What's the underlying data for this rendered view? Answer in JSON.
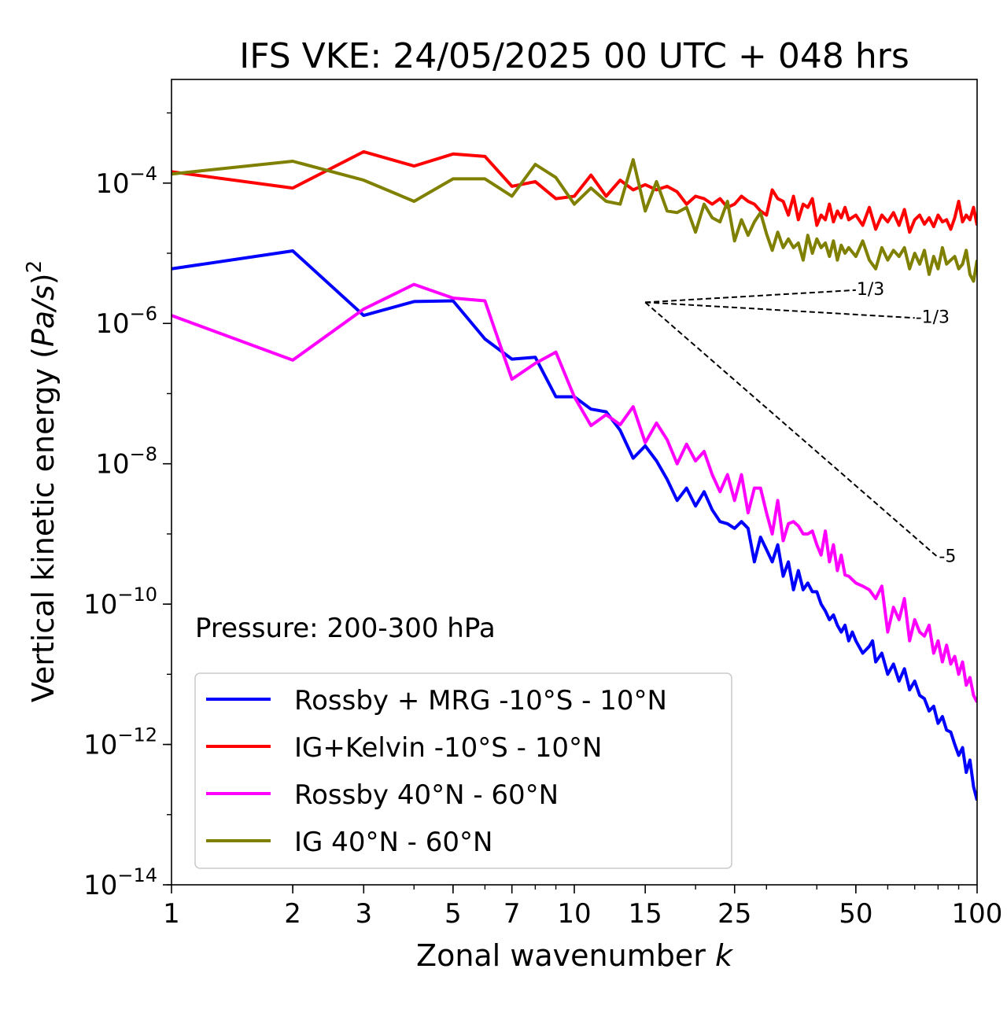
{
  "chart_data": {
    "type": "line",
    "title": "IFS VKE: 24/05/2025 00 UTC + 048 hrs",
    "xlabel": "Zonal wavenumber k",
    "ylabel": "Vertical kinetic energy (Pa/s)²",
    "xscale": "log",
    "yscale": "log",
    "xlim": [
      1,
      100
    ],
    "ylim": [
      1e-14,
      0.003
    ],
    "x_ticks": [
      1,
      2,
      3,
      5,
      7,
      10,
      15,
      25,
      50,
      100
    ],
    "y_tick_exponents": [
      -4,
      -6,
      -8,
      -10,
      -12,
      -14
    ],
    "grid": false,
    "legend_position": "bottom-left",
    "annotation": "Pressure: 200-300 hPa",
    "series": [
      {
        "name": "Rossby + MRG -10°S - 10°N",
        "color": "#0000ff",
        "points": [
          [
            1,
            6e-06
          ],
          [
            2,
            1.08e-05
          ],
          [
            3,
            1.3e-06
          ],
          [
            4,
            2.05e-06
          ],
          [
            5,
            2.1e-06
          ],
          [
            6,
            6e-07
          ],
          [
            7,
            3.1e-07
          ],
          [
            8,
            3.3e-07
          ],
          [
            9,
            9e-08
          ],
          [
            10,
            9e-08
          ],
          [
            11,
            6e-08
          ],
          [
            12,
            5.5e-08
          ],
          [
            13,
            3e-08
          ],
          [
            14,
            1.2e-08
          ],
          [
            15,
            1.8e-08
          ],
          [
            16,
            1.1e-08
          ],
          [
            17,
            6e-09
          ],
          [
            18,
            3e-09
          ],
          [
            19,
            4.5e-09
          ],
          [
            20,
            2.5e-09
          ],
          [
            21,
            4e-09
          ],
          [
            22,
            2.2e-09
          ],
          [
            23,
            1.5e-09
          ],
          [
            24,
            1.4e-09
          ],
          [
            25,
            1.2e-09
          ],
          [
            26,
            1.5e-09
          ],
          [
            27,
            1.2e-09
          ],
          [
            28,
            4e-10
          ],
          [
            29,
            9e-10
          ],
          [
            30,
            6e-10
          ],
          [
            31,
            4e-10
          ],
          [
            32,
            7e-10
          ],
          [
            33,
            2.5e-10
          ],
          [
            34,
            4e-10
          ],
          [
            35,
            1.6e-10
          ],
          [
            36,
            3e-10
          ],
          [
            37,
            1.6e-10
          ],
          [
            38,
            2e-10
          ],
          [
            39,
            1.5e-10
          ],
          [
            40,
            1.5e-10
          ],
          [
            41,
            1e-10
          ],
          [
            42,
            8e-11
          ],
          [
            43,
            6e-11
          ],
          [
            44,
            7e-11
          ],
          [
            45,
            5e-11
          ],
          [
            46,
            4e-11
          ],
          [
            47,
            5e-11
          ],
          [
            48,
            3e-11
          ],
          [
            49,
            4e-11
          ],
          [
            50,
            3e-11
          ],
          [
            52,
            2e-11
          ],
          [
            54,
            2.5e-11
          ],
          [
            55,
            3e-11
          ],
          [
            56,
            1.5e-11
          ],
          [
            58,
            2e-11
          ],
          [
            60,
            1e-11
          ],
          [
            62,
            1.4e-11
          ],
          [
            64,
            8e-12
          ],
          [
            66,
            1.2e-11
          ],
          [
            68,
            6e-12
          ],
          [
            70,
            8e-12
          ],
          [
            72,
            5e-12
          ],
          [
            74,
            4.5e-12
          ],
          [
            76,
            3e-12
          ],
          [
            78,
            3.5e-12
          ],
          [
            80,
            2e-12
          ],
          [
            82,
            2.5e-12
          ],
          [
            84,
            1.6e-12
          ],
          [
            86,
            1.5e-12
          ],
          [
            88,
            1e-12
          ],
          [
            90,
            7e-13
          ],
          [
            92,
            9e-13
          ],
          [
            94,
            4e-13
          ],
          [
            96,
            6e-13
          ],
          [
            98,
            2.5e-13
          ],
          [
            100,
            1.6e-13
          ]
        ]
      },
      {
        "name": "IG+Kelvin -10°S - 10°N",
        "color": "#ff0000",
        "points": [
          [
            1,
            0.000145
          ],
          [
            2,
            8.5e-05
          ],
          [
            3,
            0.00028
          ],
          [
            4,
            0.000175
          ],
          [
            5,
            0.00026
          ],
          [
            6,
            0.00024
          ],
          [
            7,
            9e-05
          ],
          [
            8,
            0.000105
          ],
          [
            9,
            6e-05
          ],
          [
            10,
            6.5e-05
          ],
          [
            11,
            0.00013
          ],
          [
            12,
            6.5e-05
          ],
          [
            13,
            0.00011
          ],
          [
            14,
            8e-05
          ],
          [
            15,
            9.5e-05
          ],
          [
            16,
            8e-05
          ],
          [
            17,
            9e-05
          ],
          [
            18,
            7.5e-05
          ],
          [
            19,
            5e-05
          ],
          [
            20,
            6.5e-05
          ],
          [
            21,
            6e-05
          ],
          [
            22,
            5e-05
          ],
          [
            23,
            6e-05
          ],
          [
            24,
            4.5e-05
          ],
          [
            25,
            5e-05
          ],
          [
            26,
            6.5e-05
          ],
          [
            27,
            5.5e-05
          ],
          [
            28,
            5e-05
          ],
          [
            29,
            4e-05
          ],
          [
            30,
            3.5e-05
          ],
          [
            31,
            8e-05
          ],
          [
            32,
            6e-05
          ],
          [
            33,
            5.5e-05
          ],
          [
            34,
            3.5e-05
          ],
          [
            35,
            6.5e-05
          ],
          [
            36,
            3e-05
          ],
          [
            37,
            5e-05
          ],
          [
            38,
            4.5e-05
          ],
          [
            39,
            6e-05
          ],
          [
            40,
            2.5e-05
          ],
          [
            41,
            3.5e-05
          ],
          [
            42,
            3e-05
          ],
          [
            43,
            5e-05
          ],
          [
            44,
            2.8e-05
          ],
          [
            45,
            4e-05
          ],
          [
            46,
            3.2e-05
          ],
          [
            47,
            4.5e-05
          ],
          [
            48,
            3e-05
          ],
          [
            50,
            3.5e-05
          ],
          [
            52,
            2.5e-05
          ],
          [
            54,
            4.5e-05
          ],
          [
            56,
            2.2e-05
          ],
          [
            58,
            3.5e-05
          ],
          [
            60,
            2.8e-05
          ],
          [
            62,
            3.8e-05
          ],
          [
            64,
            2.5e-05
          ],
          [
            66,
            4.2e-05
          ],
          [
            68,
            2e-05
          ],
          [
            70,
            3e-05
          ],
          [
            72,
            3.5e-05
          ],
          [
            74,
            2.6e-05
          ],
          [
            76,
            3.2e-05
          ],
          [
            78,
            2.4e-05
          ],
          [
            80,
            3.5e-05
          ],
          [
            82,
            2.8e-05
          ],
          [
            84,
            3e-05
          ],
          [
            86,
            2.2e-05
          ],
          [
            88,
            3.2e-05
          ],
          [
            90,
            5.5e-05
          ],
          [
            92,
            2.8e-05
          ],
          [
            94,
            3.5e-05
          ],
          [
            96,
            3e-05
          ],
          [
            98,
            4.5e-05
          ],
          [
            100,
            2.5e-05
          ]
        ]
      },
      {
        "name": "Rossby 40°N - 60°N",
        "color": "#ff00ff",
        "points": [
          [
            1,
            1.3e-06
          ],
          [
            2,
            3e-07
          ],
          [
            3,
            1.6e-06
          ],
          [
            4,
            3.6e-06
          ],
          [
            5,
            2.3e-06
          ],
          [
            6,
            2.1e-06
          ],
          [
            7,
            1.6e-07
          ],
          [
            8,
            2.7e-07
          ],
          [
            9,
            3.9e-07
          ],
          [
            10,
            9e-08
          ],
          [
            11,
            3.5e-08
          ],
          [
            12,
            5e-08
          ],
          [
            13,
            3.6e-08
          ],
          [
            14,
            6.5e-08
          ],
          [
            15,
            2e-08
          ],
          [
            16,
            3.8e-08
          ],
          [
            17,
            2.2e-08
          ],
          [
            18,
            1e-08
          ],
          [
            19,
            1.9e-08
          ],
          [
            20,
            1.1e-08
          ],
          [
            21,
            1.5e-08
          ],
          [
            22,
            7e-09
          ],
          [
            23,
            4e-09
          ],
          [
            24,
            7e-09
          ],
          [
            25,
            3e-09
          ],
          [
            26,
            7e-09
          ],
          [
            27,
            2e-09
          ],
          [
            28,
            4.5e-09
          ],
          [
            29,
            4.5e-09
          ],
          [
            30,
            2e-09
          ],
          [
            31,
            1e-09
          ],
          [
            32,
            3e-09
          ],
          [
            33,
            8e-10
          ],
          [
            34,
            1.4e-09
          ],
          [
            35,
            1.5e-09
          ],
          [
            36,
            1.3e-09
          ],
          [
            37,
            1e-09
          ],
          [
            38,
            1e-09
          ],
          [
            39,
            1.1e-09
          ],
          [
            40,
            7e-10
          ],
          [
            41,
            5e-10
          ],
          [
            42,
            1.1e-09
          ],
          [
            43,
            4e-10
          ],
          [
            44,
            7e-10
          ],
          [
            45,
            3e-10
          ],
          [
            46,
            5e-10
          ],
          [
            47,
            2.6e-10
          ],
          [
            48,
            2.5e-10
          ],
          [
            50,
            2e-10
          ],
          [
            52,
            1.8e-10
          ],
          [
            54,
            1.6e-10
          ],
          [
            56,
            1.2e-10
          ],
          [
            58,
            1.8e-10
          ],
          [
            60,
            4e-11
          ],
          [
            62,
            9e-11
          ],
          [
            64,
            6e-11
          ],
          [
            66,
            1.2e-10
          ],
          [
            68,
            3e-11
          ],
          [
            70,
            6e-11
          ],
          [
            72,
            4e-11
          ],
          [
            74,
            3.5e-11
          ],
          [
            76,
            5e-11
          ],
          [
            78,
            2e-11
          ],
          [
            80,
            3e-11
          ],
          [
            82,
            1.5e-11
          ],
          [
            84,
            2.6e-11
          ],
          [
            86,
            1.4e-11
          ],
          [
            88,
            1.8e-11
          ],
          [
            90,
            1e-11
          ],
          [
            92,
            1.5e-11
          ],
          [
            94,
            7e-12
          ],
          [
            96,
            9e-12
          ],
          [
            98,
            5e-12
          ],
          [
            100,
            4e-12
          ]
        ]
      },
      {
        "name": "IG 40°N - 60°N",
        "color": "#808000",
        "points": [
          [
            1,
            0.000135
          ],
          [
            2,
            0.000205
          ],
          [
            3,
            0.00011
          ],
          [
            4,
            5.5e-05
          ],
          [
            5,
            0.000115
          ],
          [
            6,
            0.000115
          ],
          [
            7,
            6.5e-05
          ],
          [
            8,
            0.000185
          ],
          [
            9,
            0.00012
          ],
          [
            10,
            5e-05
          ],
          [
            11,
            8.5e-05
          ],
          [
            12,
            5.5e-05
          ],
          [
            13,
            5e-05
          ],
          [
            14,
            0.000215
          ],
          [
            15,
            4e-05
          ],
          [
            16,
            0.000105
          ],
          [
            17,
            4e-05
          ],
          [
            18,
            3.8e-05
          ],
          [
            19,
            4.5e-05
          ],
          [
            20,
            2e-05
          ],
          [
            21,
            5e-05
          ],
          [
            22,
            3.2e-05
          ],
          [
            23,
            2.8e-05
          ],
          [
            24,
            5.5e-05
          ],
          [
            25,
            1.5e-05
          ],
          [
            26,
            3e-05
          ],
          [
            27,
            1.8e-05
          ],
          [
            28,
            2.8e-05
          ],
          [
            29,
            3.8e-05
          ],
          [
            30,
            1.9e-05
          ],
          [
            31,
            1.1e-05
          ],
          [
            32,
            2e-05
          ],
          [
            33,
            1.2e-05
          ],
          [
            34,
            1.6e-05
          ],
          [
            35,
            1.2e-05
          ],
          [
            36,
            1.4e-05
          ],
          [
            37,
            8e-06
          ],
          [
            38,
            1.8e-05
          ],
          [
            39,
            1e-05
          ],
          [
            40,
            1.6e-05
          ],
          [
            41,
            1.2e-05
          ],
          [
            42,
            1.4e-05
          ],
          [
            43,
            9e-06
          ],
          [
            44,
            1.5e-05
          ],
          [
            45,
            8e-06
          ],
          [
            46,
            1.3e-05
          ],
          [
            47,
            1e-05
          ],
          [
            48,
            1.2e-05
          ],
          [
            50,
            9e-06
          ],
          [
            52,
            1.5e-05
          ],
          [
            54,
            8e-06
          ],
          [
            56,
            6e-06
          ],
          [
            58,
            1.2e-05
          ],
          [
            60,
            8e-06
          ],
          [
            62,
            1.1e-05
          ],
          [
            64,
            9e-06
          ],
          [
            66,
            1.2e-05
          ],
          [
            68,
            6e-06
          ],
          [
            70,
            1e-05
          ],
          [
            72,
            7e-06
          ],
          [
            74,
            1.1e-05
          ],
          [
            76,
            5e-06
          ],
          [
            78,
            9e-06
          ],
          [
            80,
            6e-06
          ],
          [
            82,
            1.2e-05
          ],
          [
            84,
            7e-06
          ],
          [
            86,
            8e-06
          ],
          [
            88,
            9e-06
          ],
          [
            90,
            6e-06
          ],
          [
            92,
            7e-06
          ],
          [
            94,
            1.1e-05
          ],
          [
            96,
            5e-06
          ],
          [
            98,
            4e-06
          ],
          [
            100,
            8e-06
          ]
        ]
      }
    ],
    "reference_lines": [
      {
        "label": "1/3",
        "x": [
          15,
          50
        ]
      },
      {
        "label": "-1/3",
        "x": [
          15,
          70
        ]
      },
      {
        "label": "-5",
        "x": [
          15,
          80
        ]
      }
    ],
    "reference_anchor": {
      "x": 15,
      "y": 2e-06
    }
  }
}
